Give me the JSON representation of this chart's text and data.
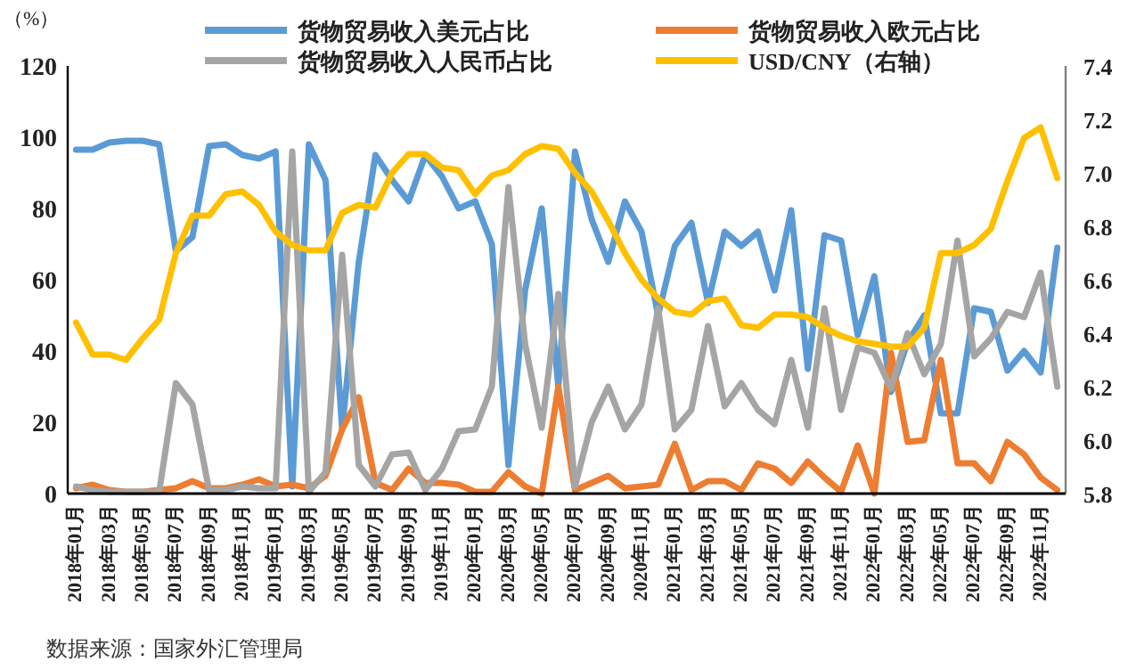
{
  "chart_data": {
    "type": "line",
    "ylabel": "（%）",
    "legend": "top",
    "annotations": [
      "数据来源：国家外汇管理局"
    ],
    "categories": [
      "2018年01月",
      null,
      "2018年03月",
      null,
      "2018年05月",
      null,
      "2018年07月",
      null,
      "2018年09月",
      null,
      "2018年11月",
      null,
      "2019年01月",
      null,
      "2019年03月",
      null,
      "2019年05月",
      null,
      "2019年07月",
      null,
      "2019年09月",
      null,
      "2019年11月",
      null,
      "2020年01月",
      null,
      "2020年03月",
      null,
      "2020年05月",
      null,
      "2020年07月",
      null,
      "2020年09月",
      null,
      "2020年11月",
      null,
      "2021年01月",
      null,
      "2021年03月",
      null,
      "2021年05月",
      null,
      "2021年07月",
      null,
      "2021年09月",
      null,
      "2021年11月",
      null,
      "2022年01月",
      null,
      "2022年03月",
      null,
      "2022年05月",
      null,
      "2022年07月",
      null,
      "2022年09月",
      null,
      "2022年11月",
      null
    ],
    "ylim": [
      0,
      120
    ],
    "yticks": [
      0,
      20,
      40,
      60,
      80,
      100,
      120
    ],
    "y2lim": [
      5.8,
      7.4
    ],
    "y2ticks": [
      5.8,
      {
        "value": 6,
        "label": "6.0"
      },
      6.2,
      6.4,
      6.6,
      6.8,
      {
        "value": 7,
        "label": "7.0"
      },
      7.2,
      7.4
    ],
    "series": [
      {
        "name": "货物贸易收入美元占比",
        "color": "#5b9bd5",
        "values": [
          96.5,
          96.5,
          98.5,
          99,
          99,
          98,
          68,
          72,
          97.5,
          98,
          95,
          94,
          96,
          2,
          98,
          88,
          18,
          65,
          95,
          88,
          82,
          95,
          89,
          80,
          82,
          70,
          8,
          57,
          80,
          30,
          96,
          77,
          65,
          82,
          73.5,
          50,
          69.5,
          76,
          53.5,
          73.5,
          69.5,
          73.5,
          57,
          79.5,
          35,
          72.5,
          71,
          44.5,
          61,
          28.5,
          42.5,
          50,
          22.5,
          22.5,
          52,
          51,
          34.5,
          40,
          34,
          69
        ]
      },
      {
        "name": "货物贸易收入欧元占比",
        "color": "#ed7d31",
        "values": [
          1.5,
          2.5,
          1,
          0.5,
          0.5,
          1,
          1.5,
          3.5,
          1.5,
          1.5,
          2.5,
          4,
          2,
          2.5,
          1.5,
          5,
          18,
          27,
          3,
          1,
          7,
          3,
          3,
          2.5,
          0.5,
          0.5,
          6,
          2,
          0,
          30,
          1,
          3,
          5,
          1.5,
          2,
          2.5,
          14,
          1,
          3.5,
          3.5,
          1,
          8.5,
          7,
          3,
          9,
          4.5,
          0.5,
          13.5,
          0,
          39.5,
          14.5,
          15,
          37.5,
          8.5,
          8.5,
          3.5,
          14.5,
          11,
          4.5,
          1
        ]
      },
      {
        "name": "货物贸易收入人民币占比",
        "color": "#a5a5a5",
        "values": [
          2,
          1,
          0.5,
          0.5,
          0.5,
          0.5,
          31,
          25,
          1,
          1,
          2,
          1.5,
          1.5,
          96,
          0.5,
          6,
          67,
          8,
          2,
          11,
          11.5,
          1,
          7,
          17.5,
          18,
          30,
          86,
          42,
          18.5,
          56,
          2,
          20,
          30,
          18,
          25,
          52,
          18,
          23.5,
          47,
          24.5,
          31,
          23.5,
          19.5,
          37.5,
          18.5,
          52,
          23.5,
          41,
          39.5,
          29.5,
          45,
          33.5,
          42,
          71,
          38.5,
          43.5,
          51,
          49.5,
          62,
          30
        ]
      },
      {
        "name": "USD/CNY（右轴）",
        "color": "#ffc000",
        "axis": "y2",
        "values": [
          6.44,
          6.32,
          6.32,
          6.3,
          6.38,
          6.45,
          6.7,
          6.84,
          6.84,
          6.92,
          6.93,
          6.88,
          6.78,
          6.73,
          6.71,
          6.71,
          6.85,
          6.88,
          6.87,
          7,
          7.07,
          7.07,
          7.02,
          7.01,
          6.92,
          6.99,
          7.01,
          7.07,
          7.1,
          7.09,
          7,
          6.93,
          6.82,
          6.7,
          6.6,
          6.53,
          6.48,
          6.47,
          6.52,
          6.53,
          6.43,
          6.42,
          6.47,
          6.47,
          6.46,
          6.42,
          6.39,
          6.37,
          6.36,
          6.35,
          6.35,
          6.42,
          6.7,
          6.7,
          6.73,
          6.79,
          6.97,
          7.13,
          7.17,
          6.98
        ]
      }
    ]
  }
}
